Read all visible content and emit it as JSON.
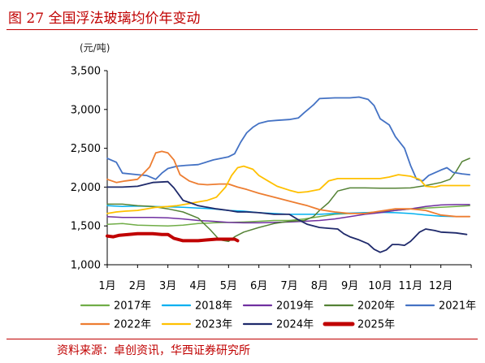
{
  "figure": {
    "title": "图 27 全国浮法玻璃均价年变动",
    "unit": "(元/吨)",
    "source": "资料来源：卓创资讯，华西证券研究所"
  },
  "chart_data": {
    "type": "line",
    "ylim": [
      1000,
      3500
    ],
    "yticks": [
      1000,
      1500,
      2000,
      2500,
      3000,
      3500
    ],
    "ytick_labels": [
      "1,000",
      "1,500",
      "2,000",
      "2,500",
      "3,000",
      "3,500"
    ],
    "x_range": [
      1,
      13
    ],
    "xticks": [
      1,
      2,
      3,
      4,
      5,
      6,
      7,
      8,
      9,
      10,
      11,
      12
    ],
    "xtick_labels": [
      "1月",
      "2月",
      "3月",
      "4月",
      "5月",
      "6月",
      "7月",
      "8月",
      "9月",
      "10月",
      "11月",
      "12月"
    ],
    "grid": false,
    "legend_position": "bottom",
    "series": [
      {
        "name": "2017年",
        "color": "#70ad47",
        "width": 1.5,
        "points": [
          [
            1,
            1520
          ],
          [
            1.5,
            1530
          ],
          [
            2,
            1510
          ],
          [
            2.5,
            1505
          ],
          [
            3,
            1500
          ],
          [
            3.5,
            1510
          ],
          [
            4,
            1530
          ],
          [
            4.5,
            1540
          ],
          [
            5,
            1545
          ],
          [
            5.5,
            1550
          ],
          [
            6,
            1560
          ],
          [
            6.5,
            1570
          ],
          [
            7,
            1570
          ],
          [
            7.5,
            1590
          ],
          [
            8,
            1620
          ],
          [
            8.5,
            1650
          ],
          [
            9,
            1660
          ],
          [
            9.5,
            1670
          ],
          [
            10,
            1680
          ],
          [
            10.5,
            1700
          ],
          [
            11,
            1720
          ],
          [
            11.5,
            1730
          ],
          [
            12,
            1740
          ],
          [
            12.5,
            1750
          ],
          [
            12.95,
            1760
          ]
        ]
      },
      {
        "name": "2018年",
        "color": "#00b0f0",
        "width": 1.5,
        "points": [
          [
            1,
            1760
          ],
          [
            1.5,
            1750
          ],
          [
            2,
            1755
          ],
          [
            2.5,
            1750
          ],
          [
            3,
            1745
          ],
          [
            3.5,
            1740
          ],
          [
            4,
            1730
          ],
          [
            4.5,
            1720
          ],
          [
            5,
            1700
          ],
          [
            5.5,
            1690
          ],
          [
            6,
            1670
          ],
          [
            6.5,
            1660
          ],
          [
            7,
            1650
          ],
          [
            7.5,
            1650
          ],
          [
            8,
            1650
          ],
          [
            8.5,
            1660
          ],
          [
            9,
            1665
          ],
          [
            9.5,
            1670
          ],
          [
            10,
            1675
          ],
          [
            10.5,
            1670
          ],
          [
            11,
            1660
          ],
          [
            11.5,
            1640
          ],
          [
            12,
            1625
          ],
          [
            12.5,
            1620
          ],
          [
            12.95,
            1620
          ]
        ]
      },
      {
        "name": "2019年",
        "color": "#7030a0",
        "width": 1.5,
        "points": [
          [
            1,
            1620
          ],
          [
            1.5,
            1610
          ],
          [
            2,
            1610
          ],
          [
            2.5,
            1610
          ],
          [
            3,
            1605
          ],
          [
            3.5,
            1590
          ],
          [
            4,
            1570
          ],
          [
            4.5,
            1560
          ],
          [
            5,
            1545
          ],
          [
            5.5,
            1540
          ],
          [
            6,
            1540
          ],
          [
            6.5,
            1545
          ],
          [
            7,
            1550
          ],
          [
            7.5,
            1560
          ],
          [
            8,
            1570
          ],
          [
            8.5,
            1590
          ],
          [
            9,
            1620
          ],
          [
            9.5,
            1650
          ],
          [
            10,
            1670
          ],
          [
            10.5,
            1700
          ],
          [
            11,
            1720
          ],
          [
            11.5,
            1750
          ],
          [
            12,
            1770
          ],
          [
            12.5,
            1775
          ],
          [
            12.95,
            1775
          ]
        ]
      },
      {
        "name": "2020年",
        "color": "#548235",
        "width": 1.5,
        "points": [
          [
            1,
            1780
          ],
          [
            1.5,
            1780
          ],
          [
            2,
            1760
          ],
          [
            2.5,
            1750
          ],
          [
            3,
            1720
          ],
          [
            3.5,
            1680
          ],
          [
            4,
            1600
          ],
          [
            4.4,
            1450
          ],
          [
            4.7,
            1320
          ],
          [
            5,
            1300
          ],
          [
            5.2,
            1360
          ],
          [
            5.5,
            1420
          ],
          [
            6,
            1480
          ],
          [
            6.5,
            1530
          ],
          [
            7,
            1560
          ],
          [
            7.5,
            1570
          ],
          [
            7.8,
            1620
          ],
          [
            8,
            1700
          ],
          [
            8.3,
            1800
          ],
          [
            8.6,
            1950
          ],
          [
            9,
            1990
          ],
          [
            9.5,
            1990
          ],
          [
            10,
            1985
          ],
          [
            10.5,
            1985
          ],
          [
            11,
            1990
          ],
          [
            11.5,
            2020
          ],
          [
            12,
            2060
          ],
          [
            12.3,
            2100
          ],
          [
            12.5,
            2200
          ],
          [
            12.7,
            2330
          ],
          [
            12.95,
            2370
          ]
        ]
      },
      {
        "name": "2021年",
        "color": "#4472c4",
        "width": 1.8,
        "points": [
          [
            1,
            2370
          ],
          [
            1.3,
            2320
          ],
          [
            1.5,
            2180
          ],
          [
            2,
            2160
          ],
          [
            2.3,
            2150
          ],
          [
            2.6,
            2100
          ],
          [
            2.8,
            2180
          ],
          [
            3,
            2240
          ],
          [
            3.3,
            2270
          ],
          [
            3.6,
            2280
          ],
          [
            4,
            2290
          ],
          [
            4.5,
            2350
          ],
          [
            5,
            2390
          ],
          [
            5.2,
            2430
          ],
          [
            5.4,
            2580
          ],
          [
            5.6,
            2700
          ],
          [
            5.8,
            2770
          ],
          [
            6,
            2820
          ],
          [
            6.3,
            2850
          ],
          [
            6.6,
            2860
          ],
          [
            7,
            2870
          ],
          [
            7.3,
            2890
          ],
          [
            7.5,
            2960
          ],
          [
            7.8,
            3060
          ],
          [
            8,
            3140
          ],
          [
            8.5,
            3150
          ],
          [
            9,
            3150
          ],
          [
            9.3,
            3160
          ],
          [
            9.6,
            3130
          ],
          [
            9.8,
            3050
          ],
          [
            10,
            2880
          ],
          [
            10.3,
            2800
          ],
          [
            10.5,
            2650
          ],
          [
            10.8,
            2500
          ],
          [
            11,
            2280
          ],
          [
            11.2,
            2100
          ],
          [
            11.4,
            2080
          ],
          [
            11.6,
            2150
          ],
          [
            12,
            2220
          ],
          [
            12.2,
            2250
          ],
          [
            12.4,
            2190
          ],
          [
            12.7,
            2170
          ],
          [
            12.95,
            2160
          ]
        ]
      },
      {
        "name": "2022年",
        "color": "#ed7d31",
        "width": 1.8,
        "points": [
          [
            1,
            2100
          ],
          [
            1.3,
            2060
          ],
          [
            1.6,
            2080
          ],
          [
            2,
            2100
          ],
          [
            2.2,
            2180
          ],
          [
            2.4,
            2260
          ],
          [
            2.6,
            2440
          ],
          [
            2.8,
            2460
          ],
          [
            3,
            2440
          ],
          [
            3.2,
            2350
          ],
          [
            3.4,
            2160
          ],
          [
            3.7,
            2080
          ],
          [
            4,
            2040
          ],
          [
            4.3,
            2030
          ],
          [
            4.7,
            2040
          ],
          [
            5,
            2040
          ],
          [
            5.3,
            2000
          ],
          [
            5.6,
            1970
          ],
          [
            6,
            1920
          ],
          [
            6.3,
            1890
          ],
          [
            6.6,
            1860
          ],
          [
            7,
            1820
          ],
          [
            7.3,
            1790
          ],
          [
            7.6,
            1760
          ],
          [
            8,
            1710
          ],
          [
            8.5,
            1680
          ],
          [
            9,
            1660
          ],
          [
            9.5,
            1660
          ],
          [
            10,
            1690
          ],
          [
            10.5,
            1720
          ],
          [
            11,
            1720
          ],
          [
            11.5,
            1700
          ],
          [
            12,
            1640
          ],
          [
            12.5,
            1620
          ],
          [
            12.95,
            1620
          ]
        ]
      },
      {
        "name": "2023年",
        "color": "#ffc000",
        "width": 1.8,
        "points": [
          [
            1,
            1660
          ],
          [
            1.3,
            1680
          ],
          [
            1.6,
            1690
          ],
          [
            2,
            1700
          ],
          [
            2.3,
            1720
          ],
          [
            2.6,
            1740
          ],
          [
            3,
            1750
          ],
          [
            3.3,
            1760
          ],
          [
            3.6,
            1780
          ],
          [
            4,
            1810
          ],
          [
            4.3,
            1830
          ],
          [
            4.6,
            1870
          ],
          [
            4.9,
            2000
          ],
          [
            5.1,
            2150
          ],
          [
            5.3,
            2250
          ],
          [
            5.5,
            2270
          ],
          [
            5.8,
            2230
          ],
          [
            6,
            2150
          ],
          [
            6.3,
            2080
          ],
          [
            6.6,
            2010
          ],
          [
            7,
            1960
          ],
          [
            7.3,
            1930
          ],
          [
            7.6,
            1940
          ],
          [
            8,
            1970
          ],
          [
            8.3,
            2080
          ],
          [
            8.6,
            2110
          ],
          [
            9,
            2110
          ],
          [
            9.5,
            2110
          ],
          [
            10,
            2110
          ],
          [
            10.3,
            2130
          ],
          [
            10.6,
            2160
          ],
          [
            11,
            2140
          ],
          [
            11.3,
            2100
          ],
          [
            11.5,
            2010
          ],
          [
            11.8,
            2000
          ],
          [
            12,
            2020
          ],
          [
            12.5,
            2020
          ],
          [
            12.95,
            2020
          ]
        ]
      },
      {
        "name": "2024年",
        "color": "#1f2a6b",
        "width": 1.8,
        "points": [
          [
            1,
            2000
          ],
          [
            1.5,
            2000
          ],
          [
            2,
            2010
          ],
          [
            2.5,
            2060
          ],
          [
            3,
            2070
          ],
          [
            3.2,
            1990
          ],
          [
            3.5,
            1830
          ],
          [
            3.8,
            1790
          ],
          [
            4,
            1760
          ],
          [
            4.3,
            1740
          ],
          [
            4.6,
            1720
          ],
          [
            5,
            1700
          ],
          [
            5.3,
            1680
          ],
          [
            5.6,
            1680
          ],
          [
            6,
            1670
          ],
          [
            6.5,
            1650
          ],
          [
            7,
            1650
          ],
          [
            7.3,
            1580
          ],
          [
            7.6,
            1520
          ],
          [
            8,
            1480
          ],
          [
            8.3,
            1470
          ],
          [
            8.6,
            1460
          ],
          [
            8.8,
            1400
          ],
          [
            9,
            1360
          ],
          [
            9.3,
            1320
          ],
          [
            9.6,
            1270
          ],
          [
            9.8,
            1200
          ],
          [
            10,
            1160
          ],
          [
            10.2,
            1190
          ],
          [
            10.4,
            1260
          ],
          [
            10.6,
            1260
          ],
          [
            10.8,
            1250
          ],
          [
            11,
            1300
          ],
          [
            11.3,
            1420
          ],
          [
            11.5,
            1460
          ],
          [
            11.8,
            1440
          ],
          [
            12,
            1420
          ],
          [
            12.5,
            1410
          ],
          [
            12.85,
            1390
          ]
        ]
      },
      {
        "name": "2025年",
        "color": "#c00000",
        "width": 4,
        "points": [
          [
            1,
            1370
          ],
          [
            1.2,
            1360
          ],
          [
            1.4,
            1380
          ],
          [
            1.7,
            1390
          ],
          [
            2,
            1400
          ],
          [
            2.5,
            1400
          ],
          [
            2.8,
            1390
          ],
          [
            3,
            1390
          ],
          [
            3.2,
            1340
          ],
          [
            3.5,
            1310
          ],
          [
            4,
            1310
          ],
          [
            4.3,
            1320
          ],
          [
            4.6,
            1330
          ],
          [
            5,
            1330
          ],
          [
            5.2,
            1330
          ],
          [
            5.3,
            1310
          ]
        ]
      }
    ]
  }
}
